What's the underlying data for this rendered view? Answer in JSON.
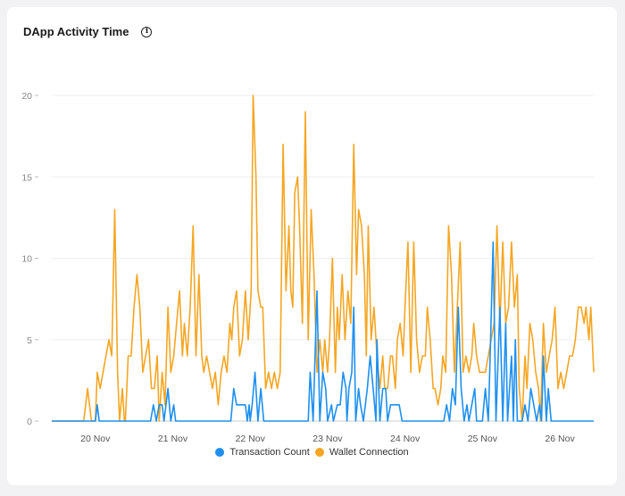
{
  "card": {
    "title": "DApp Activity Time",
    "info_icon": "info-icon"
  },
  "chart_data": {
    "type": "line",
    "title": "DApp Activity Time",
    "xlabel": "",
    "ylabel": "",
    "ylim": [
      0,
      20
    ],
    "y_ticks": [
      0,
      5,
      10,
      15,
      20
    ],
    "x_ticks": [
      {
        "x": 6.0,
        "label": "20 Nov"
      },
      {
        "x": 10.0,
        "label": "21 Nov"
      },
      {
        "x": 14.0,
        "label": "22 Nov"
      },
      {
        "x": 18.0,
        "label": "23 Nov"
      },
      {
        "x": 22.0,
        "label": "24 Nov"
      },
      {
        "x": 26.0,
        "label": "25 Nov"
      },
      {
        "x": 30.0,
        "label": "26 Nov"
      }
    ],
    "xlim": [
      3.75,
      31.75
    ],
    "grid": true,
    "legend": "bottom-center",
    "series": [
      {
        "name": "Wallet Connection",
        "color": "#f5a623",
        "points": [
          [
            3.75,
            0
          ],
          [
            5.4,
            0
          ],
          [
            5.6,
            2
          ],
          [
            5.8,
            0
          ],
          [
            6.0,
            0
          ],
          [
            6.1,
            3
          ],
          [
            6.25,
            2
          ],
          [
            6.4,
            3
          ],
          [
            6.55,
            4
          ],
          [
            6.7,
            5
          ],
          [
            6.85,
            4
          ],
          [
            7.0,
            13
          ],
          [
            7.15,
            3
          ],
          [
            7.25,
            0
          ],
          [
            7.4,
            2
          ],
          [
            7.5,
            0
          ],
          [
            7.55,
            0
          ],
          [
            7.7,
            4
          ],
          [
            7.85,
            4
          ],
          [
            8.0,
            7
          ],
          [
            8.15,
            9
          ],
          [
            8.3,
            7
          ],
          [
            8.45,
            3
          ],
          [
            8.6,
            4
          ],
          [
            8.75,
            5
          ],
          [
            8.9,
            2
          ],
          [
            9.05,
            2
          ],
          [
            9.2,
            4
          ],
          [
            9.3,
            0
          ],
          [
            9.45,
            3
          ],
          [
            9.6,
            1
          ],
          [
            9.75,
            7
          ],
          [
            9.9,
            3
          ],
          [
            10.05,
            4
          ],
          [
            10.2,
            6
          ],
          [
            10.35,
            8
          ],
          [
            10.5,
            4
          ],
          [
            10.6,
            6
          ],
          [
            10.75,
            4
          ],
          [
            10.9,
            7
          ],
          [
            11.05,
            12
          ],
          [
            11.2,
            4
          ],
          [
            11.35,
            9
          ],
          [
            11.5,
            4
          ],
          [
            11.6,
            3
          ],
          [
            11.75,
            4
          ],
          [
            11.9,
            3
          ],
          [
            12.05,
            2
          ],
          [
            12.2,
            3
          ],
          [
            12.35,
            1
          ],
          [
            12.5,
            3
          ],
          [
            12.65,
            4
          ],
          [
            12.8,
            3
          ],
          [
            12.95,
            6
          ],
          [
            13.05,
            5
          ],
          [
            13.15,
            7
          ],
          [
            13.3,
            8
          ],
          [
            13.45,
            4
          ],
          [
            13.6,
            5
          ],
          [
            13.75,
            8
          ],
          [
            13.9,
            5
          ],
          [
            14.05,
            8
          ],
          [
            14.15,
            20
          ],
          [
            14.3,
            15
          ],
          [
            14.4,
            8
          ],
          [
            14.55,
            7
          ],
          [
            14.65,
            7
          ],
          [
            14.8,
            2
          ],
          [
            14.95,
            3
          ],
          [
            15.1,
            2
          ],
          [
            15.25,
            3
          ],
          [
            15.4,
            2
          ],
          [
            15.55,
            3
          ],
          [
            15.7,
            17
          ],
          [
            15.85,
            8
          ],
          [
            16.0,
            12
          ],
          [
            16.1,
            8
          ],
          [
            16.2,
            7
          ],
          [
            16.3,
            14
          ],
          [
            16.45,
            15
          ],
          [
            16.55,
            12
          ],
          [
            16.7,
            6
          ],
          [
            16.85,
            19
          ],
          [
            17.0,
            5
          ],
          [
            17.15,
            13
          ],
          [
            17.3,
            9
          ],
          [
            17.45,
            3
          ],
          [
            17.6,
            5
          ],
          [
            17.75,
            3
          ],
          [
            17.85,
            5
          ],
          [
            18.0,
            3
          ],
          [
            18.1,
            5
          ],
          [
            18.25,
            10
          ],
          [
            18.4,
            3
          ],
          [
            18.5,
            7
          ],
          [
            18.6,
            5
          ],
          [
            18.75,
            9
          ],
          [
            18.9,
            5
          ],
          [
            19.05,
            8
          ],
          [
            19.2,
            6
          ],
          [
            19.35,
            17
          ],
          [
            19.5,
            9
          ],
          [
            19.6,
            13
          ],
          [
            19.75,
            12
          ],
          [
            19.9,
            9
          ],
          [
            20.0,
            4
          ],
          [
            20.1,
            12
          ],
          [
            20.25,
            5
          ],
          [
            20.4,
            7
          ],
          [
            20.55,
            4
          ],
          [
            20.7,
            2
          ],
          [
            20.85,
            4
          ],
          [
            20.95,
            2
          ],
          [
            21.1,
            2
          ],
          [
            21.25,
            4
          ],
          [
            21.35,
            4
          ],
          [
            21.5,
            2
          ],
          [
            21.6,
            5
          ],
          [
            21.75,
            6
          ],
          [
            21.9,
            4
          ],
          [
            22.0,
            7
          ],
          [
            22.15,
            11
          ],
          [
            22.3,
            3
          ],
          [
            22.45,
            11
          ],
          [
            22.6,
            5
          ],
          [
            22.75,
            3
          ],
          [
            22.9,
            4
          ],
          [
            23.05,
            4
          ],
          [
            23.15,
            7
          ],
          [
            23.3,
            5
          ],
          [
            23.45,
            2
          ],
          [
            23.55,
            2
          ],
          [
            23.7,
            1
          ],
          [
            23.85,
            2
          ],
          [
            23.95,
            4
          ],
          [
            24.1,
            3
          ],
          [
            24.25,
            12
          ],
          [
            24.4,
            9
          ],
          [
            24.55,
            3
          ],
          [
            24.7,
            7
          ],
          [
            24.85,
            11
          ],
          [
            25.0,
            3
          ],
          [
            25.15,
            4
          ],
          [
            25.3,
            3
          ],
          [
            25.45,
            4
          ],
          [
            25.55,
            6
          ],
          [
            25.7,
            4
          ],
          [
            25.85,
            3
          ],
          [
            26.0,
            3
          ],
          [
            26.15,
            3
          ],
          [
            26.3,
            4
          ],
          [
            26.45,
            5
          ],
          [
            26.6,
            6
          ],
          [
            26.75,
            12
          ],
          [
            26.9,
            6
          ],
          [
            27.05,
            11
          ],
          [
            27.2,
            6
          ],
          [
            27.35,
            7
          ],
          [
            27.5,
            11
          ],
          [
            27.65,
            7
          ],
          [
            27.8,
            9
          ],
          [
            27.9,
            2
          ],
          [
            28.05,
            0
          ],
          [
            28.2,
            4
          ],
          [
            28.3,
            2
          ],
          [
            28.45,
            6
          ],
          [
            28.6,
            5
          ],
          [
            28.75,
            3
          ],
          [
            28.9,
            2
          ],
          [
            29.0,
            0
          ],
          [
            29.15,
            6
          ],
          [
            29.3,
            3
          ],
          [
            29.45,
            4
          ],
          [
            29.6,
            5
          ],
          [
            29.75,
            7
          ],
          [
            29.9,
            2
          ],
          [
            30.05,
            3
          ],
          [
            30.2,
            2
          ],
          [
            30.35,
            3
          ],
          [
            30.5,
            4
          ],
          [
            30.65,
            4
          ],
          [
            30.8,
            5
          ],
          [
            30.95,
            7
          ],
          [
            31.1,
            7
          ],
          [
            31.25,
            6
          ],
          [
            31.35,
            7
          ],
          [
            31.5,
            5
          ],
          [
            31.6,
            7
          ],
          [
            31.75,
            3
          ]
        ]
      },
      {
        "name": "Transaction Count",
        "color": "#1e90f0",
        "points": [
          [
            3.75,
            0
          ],
          [
            6.0,
            0
          ],
          [
            6.1,
            1
          ],
          [
            6.2,
            0
          ],
          [
            8.85,
            0
          ],
          [
            9.0,
            1
          ],
          [
            9.15,
            0
          ],
          [
            9.3,
            1
          ],
          [
            9.45,
            1
          ],
          [
            9.55,
            0
          ],
          [
            9.75,
            2
          ],
          [
            9.9,
            0
          ],
          [
            10.05,
            1
          ],
          [
            10.15,
            0
          ],
          [
            13.0,
            0
          ],
          [
            13.15,
            2
          ],
          [
            13.3,
            1
          ],
          [
            13.45,
            1
          ],
          [
            13.6,
            1
          ],
          [
            13.75,
            1
          ],
          [
            13.85,
            0
          ],
          [
            13.95,
            1
          ],
          [
            14.0,
            0
          ],
          [
            14.1,
            1
          ],
          [
            14.25,
            3
          ],
          [
            14.4,
            0
          ],
          [
            14.55,
            2
          ],
          [
            14.7,
            0
          ],
          [
            17.0,
            0
          ],
          [
            17.1,
            3
          ],
          [
            17.25,
            0
          ],
          [
            17.45,
            8
          ],
          [
            17.6,
            0
          ],
          [
            17.75,
            3
          ],
          [
            17.9,
            2
          ],
          [
            18.0,
            0
          ],
          [
            18.2,
            1
          ],
          [
            18.3,
            0
          ],
          [
            18.5,
            1
          ],
          [
            18.65,
            1
          ],
          [
            18.8,
            3
          ],
          [
            18.95,
            2
          ],
          [
            19.0,
            0
          ],
          [
            19.1,
            2
          ],
          [
            19.25,
            3
          ],
          [
            19.35,
            7
          ],
          [
            19.45,
            0
          ],
          [
            19.6,
            2
          ],
          [
            19.7,
            1
          ],
          [
            19.85,
            0
          ],
          [
            20.05,
            2
          ],
          [
            20.2,
            4
          ],
          [
            20.35,
            2
          ],
          [
            20.5,
            0
          ],
          [
            20.55,
            5
          ],
          [
            20.7,
            0
          ],
          [
            20.85,
            2
          ],
          [
            21.0,
            2
          ],
          [
            21.1,
            0
          ],
          [
            21.25,
            1
          ],
          [
            21.4,
            1
          ],
          [
            21.55,
            1
          ],
          [
            21.7,
            1
          ],
          [
            21.85,
            0
          ],
          [
            24.0,
            0
          ],
          [
            24.15,
            1
          ],
          [
            24.3,
            0
          ],
          [
            24.45,
            2
          ],
          [
            24.6,
            1
          ],
          [
            24.75,
            7
          ],
          [
            24.9,
            2
          ],
          [
            25.05,
            0
          ],
          [
            25.2,
            1
          ],
          [
            25.3,
            0
          ],
          [
            25.45,
            1
          ],
          [
            25.6,
            2
          ],
          [
            25.7,
            0
          ],
          [
            26.0,
            0
          ],
          [
            26.15,
            2
          ],
          [
            26.3,
            0
          ],
          [
            26.4,
            4
          ],
          [
            26.55,
            11
          ],
          [
            26.7,
            0
          ],
          [
            26.9,
            7
          ],
          [
            27.05,
            0
          ],
          [
            27.2,
            6
          ],
          [
            27.3,
            0
          ],
          [
            27.5,
            4
          ],
          [
            27.6,
            0
          ],
          [
            27.7,
            5
          ],
          [
            27.8,
            0
          ],
          [
            28.05,
            0
          ],
          [
            28.2,
            1
          ],
          [
            28.35,
            0
          ],
          [
            28.5,
            2
          ],
          [
            28.65,
            1
          ],
          [
            28.8,
            0
          ],
          [
            28.95,
            1
          ],
          [
            29.05,
            0
          ],
          [
            29.15,
            4
          ],
          [
            29.3,
            0
          ],
          [
            29.4,
            2
          ],
          [
            29.55,
            0
          ],
          [
            31.75,
            0
          ]
        ]
      }
    ]
  }
}
